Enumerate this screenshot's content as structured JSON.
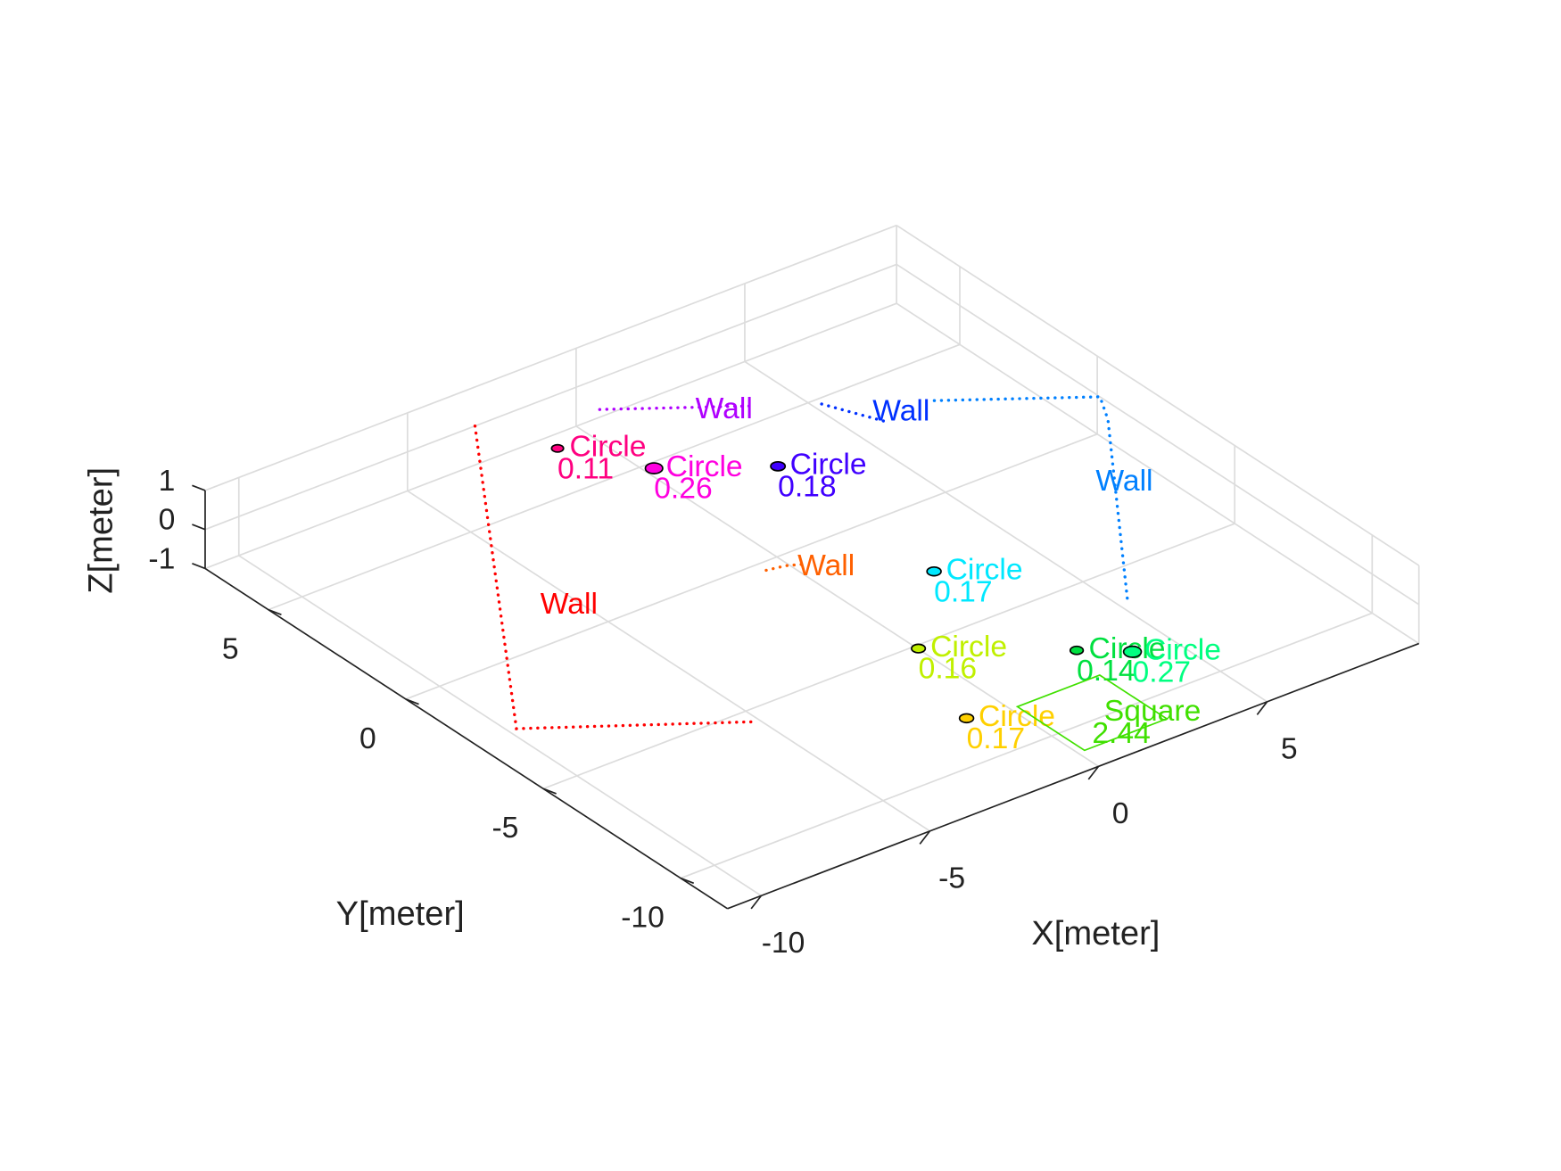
{
  "chart_data": {
    "type": "scatter3d",
    "xlabel": "X[meter]",
    "ylabel": "Y[meter]",
    "zlabel": "Z[meter]",
    "xlim": [
      -11,
      9.5
    ],
    "ylim": [
      -11.7,
      7.3
    ],
    "zlim": [
      -1,
      1
    ],
    "xticks": [
      -10,
      -5,
      0,
      5
    ],
    "yticks": [
      -10,
      -5,
      0,
      5
    ],
    "zticks": [
      -1,
      0,
      1
    ],
    "grid": true,
    "objects": [
      {
        "label": "Circle",
        "size": 0.11,
        "x": -2.1,
        "y": 5.4,
        "z": 0,
        "color": "#ff0080"
      },
      {
        "label": "Circle",
        "size": 0.26,
        "x": -0.87,
        "y": 3.4,
        "z": 0,
        "color": "#ff00e0"
      },
      {
        "label": "Circle",
        "size": 0.18,
        "x": 1.5,
        "y": 1.8,
        "z": 0,
        "color": "#4000ff"
      },
      {
        "label": "Circle",
        "size": 0.17,
        "x": 1.4,
        "y": -4.0,
        "z": 0,
        "color": "#00e8ff"
      },
      {
        "label": "Circle",
        "size": 0.16,
        "x": -1.1,
        "y": -6.5,
        "z": 0,
        "color": "#c0f000"
      },
      {
        "label": "Circle",
        "size": 0.14,
        "x": 1.8,
        "y": -8.7,
        "z": 0,
        "color": "#00e040"
      },
      {
        "label": "Circle",
        "size": 0.27,
        "x": 2.8,
        "y": -9.5,
        "z": 0,
        "color": "#00ff80"
      },
      {
        "label": "Circle",
        "size": 0.17,
        "x": -2.2,
        "y": -9.6,
        "z": 0,
        "color": "#ffd000"
      },
      {
        "label": "Square",
        "size": 2.44,
        "x": 0.3,
        "y": -11.1,
        "z": 0,
        "color": "#40e000"
      }
    ],
    "walls": [
      {
        "label": "Wall",
        "color": "#ff0000",
        "x": [
          -3.0,
          -10.9,
          -6.2
        ],
        "y": [
          7.3,
          -3.9,
          -6.9
        ],
        "z": [
          0,
          0,
          0
        ]
      },
      {
        "label": "Wall",
        "color": "#b000ff",
        "x": [
          -0.2,
          2.7
        ],
        "y": [
          6.2,
          4.3
        ],
        "z": [
          0,
          0
        ]
      },
      {
        "label": "Wall",
        "color": "#0030ff",
        "x": [
          4.1,
          4.8
        ],
        "y": [
          3.4,
          1.9
        ],
        "z": [
          0,
          0
        ]
      },
      {
        "label": "Wall",
        "color": "#0080ff",
        "x": [
          6.3,
          9.5,
          9.0,
          4.2
        ],
        "y": [
          2.0,
          -0.1,
          -1.0,
          -7.6
        ],
        "z": [
          0,
          0,
          0,
          0
        ]
      },
      {
        "label": "Wall",
        "color": "#ff6000",
        "x": [
          -1.7,
          -1.2,
          -0.8
        ],
        "y": [
          -1.7,
          -1.8,
          -2.0
        ],
        "z": [
          0,
          0,
          0
        ]
      }
    ]
  }
}
